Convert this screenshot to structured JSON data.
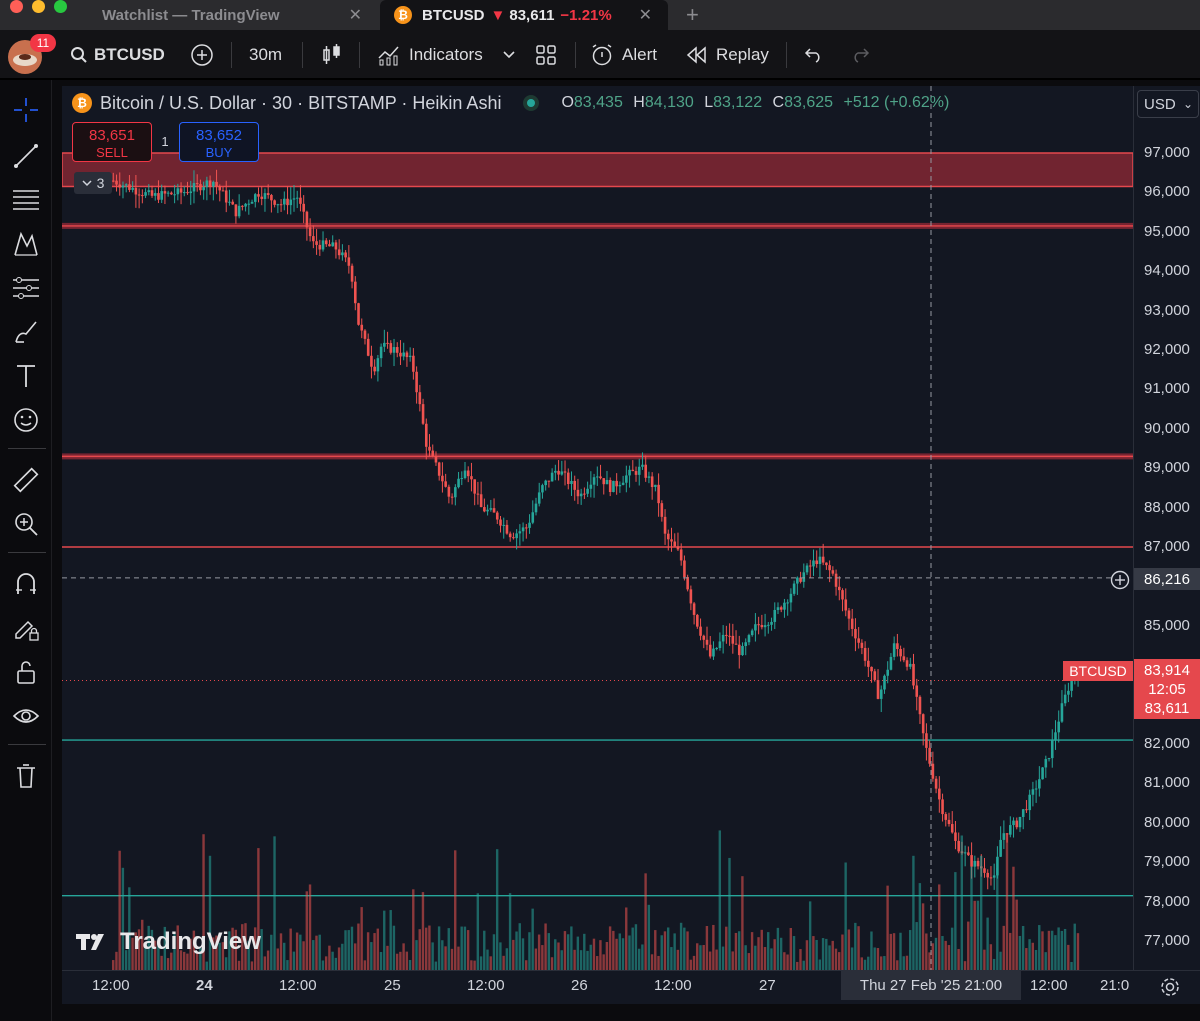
{
  "window": {
    "tabs": [
      {
        "label": "Watchlist — TradingView",
        "active": false
      },
      {
        "label": "BTCUSD",
        "price": "83,611",
        "change": "−1.21%",
        "arrow": "▼",
        "active": true
      }
    ]
  },
  "toolbar": {
    "notifications": "11",
    "symbol": "BTCUSD",
    "interval": "30m",
    "indicators_label": "Indicators",
    "alert_label": "Alert",
    "replay_label": "Replay"
  },
  "legend": {
    "title": "Bitcoin / U.S. Dollar · 30 · BITSTAMP · Heikin Ashi",
    "o_key": "O",
    "o": "83,435",
    "h_key": "H",
    "h": "84,130",
    "l_key": "L",
    "l": "83,122",
    "c_key": "C",
    "c": "83,625",
    "change": "+512 (+0.62%)"
  },
  "trade": {
    "sell_price": "83,651",
    "sell_label": "SELL",
    "buy_price": "83,652",
    "buy_label": "BUY",
    "quantity": "1",
    "collapsed_count": "3"
  },
  "currency": "USD",
  "price_axis": [
    "97,000",
    "96,000",
    "95,000",
    "94,000",
    "93,000",
    "92,000",
    "91,000",
    "90,000",
    "89,000",
    "88,000",
    "87,000",
    "85,000",
    "82,000",
    "81,000",
    "80,000",
    "79,000",
    "78,000",
    "77,000"
  ],
  "crosshair": {
    "price": "86,216",
    "time": "Thu 27 Feb '25   21:00"
  },
  "current": {
    "tag": "BTCUSD",
    "price": "83,914",
    "countdown": "12:05",
    "last": "83,611"
  },
  "time_axis": [
    {
      "label": "12:00",
      "bold": false
    },
    {
      "label": "24",
      "bold": true
    },
    {
      "label": "12:00",
      "bold": false
    },
    {
      "label": "25",
      "bold": false
    },
    {
      "label": "12:00",
      "bold": false
    },
    {
      "label": "26",
      "bold": false
    },
    {
      "label": "12:00",
      "bold": false
    },
    {
      "label": "27",
      "bold": false
    },
    {
      "label": "12:00",
      "bold": false
    },
    {
      "label": "21:0",
      "bold": false
    }
  ],
  "watermark": "TradingView",
  "colors": {
    "up": "#26a69a",
    "down": "#ef5350",
    "zone": "#f23645",
    "support": "#26a69a",
    "background": "#131722"
  },
  "icons": [
    "crosshair-icon",
    "trendline-icon",
    "fib-icon",
    "pattern-icon",
    "forecast-icon",
    "brush-icon",
    "text-icon",
    "emoji-icon",
    "ruler-icon",
    "zoom-icon",
    "magnet-icon",
    "lock-drawing-icon",
    "lock-icon",
    "eye-icon",
    "trash-icon"
  ],
  "chart_data": {
    "type": "candlestick",
    "style": "Heikin Ashi",
    "interval": "30",
    "ylim": [
      76500,
      97800
    ],
    "resistance_zone": [
      96150,
      97000
    ],
    "horizontal_lines": [
      {
        "price": 95150,
        "kind": "resistance"
      },
      {
        "price": 89300,
        "kind": "resistance"
      },
      {
        "price": 87000,
        "kind": "resistance"
      },
      {
        "price": 82100,
        "kind": "support"
      },
      {
        "price": 78150,
        "kind": "support"
      }
    ],
    "path": [
      [
        0.0,
        96300
      ],
      [
        0.05,
        95900
      ],
      [
        0.09,
        96000
      ],
      [
        0.13,
        96300
      ],
      [
        0.16,
        95500
      ],
      [
        0.19,
        96000
      ],
      [
        0.22,
        95700
      ],
      [
        0.24,
        95900
      ],
      [
        0.26,
        94700
      ],
      [
        0.29,
        94600
      ],
      [
        0.31,
        94100
      ],
      [
        0.32,
        92700
      ],
      [
        0.34,
        91500
      ],
      [
        0.35,
        92100
      ],
      [
        0.37,
        92000
      ],
      [
        0.39,
        91700
      ],
      [
        0.41,
        89500
      ],
      [
        0.43,
        88700
      ],
      [
        0.44,
        88200
      ],
      [
        0.46,
        89100
      ],
      [
        0.48,
        88000
      ],
      [
        0.5,
        87800
      ],
      [
        0.52,
        87300
      ],
      [
        0.54,
        87500
      ],
      [
        0.56,
        88500
      ],
      [
        0.58,
        89000
      ],
      [
        0.61,
        88300
      ],
      [
        0.63,
        88900
      ],
      [
        0.65,
        88500
      ],
      [
        0.67,
        88800
      ],
      [
        0.69,
        89000
      ],
      [
        0.71,
        88400
      ],
      [
        0.72,
        87300
      ],
      [
        0.74,
        86800
      ],
      [
        0.76,
        85200
      ],
      [
        0.78,
        84200
      ],
      [
        0.8,
        84800
      ],
      [
        0.82,
        84300
      ],
      [
        0.84,
        85000
      ],
      [
        0.86,
        85200
      ],
      [
        0.88,
        85700
      ],
      [
        0.9,
        86300
      ],
      [
        0.92,
        86700
      ],
      [
        0.94,
        86300
      ],
      [
        0.96,
        85200
      ],
      [
        0.98,
        84300
      ],
      [
        1.0,
        83200
      ],
      [
        1.02,
        84500
      ],
      [
        1.04,
        84000
      ],
      [
        1.06,
        82000
      ],
      [
        1.08,
        80500
      ],
      [
        1.1,
        79500
      ],
      [
        1.12,
        79000
      ],
      [
        1.14,
        78800
      ],
      [
        1.15,
        78500
      ],
      [
        1.16,
        79700
      ],
      [
        1.18,
        80000
      ],
      [
        1.2,
        80700
      ],
      [
        1.22,
        81600
      ],
      [
        1.24,
        83000
      ],
      [
        1.25,
        83600
      ],
      [
        1.26,
        83900
      ]
    ]
  }
}
